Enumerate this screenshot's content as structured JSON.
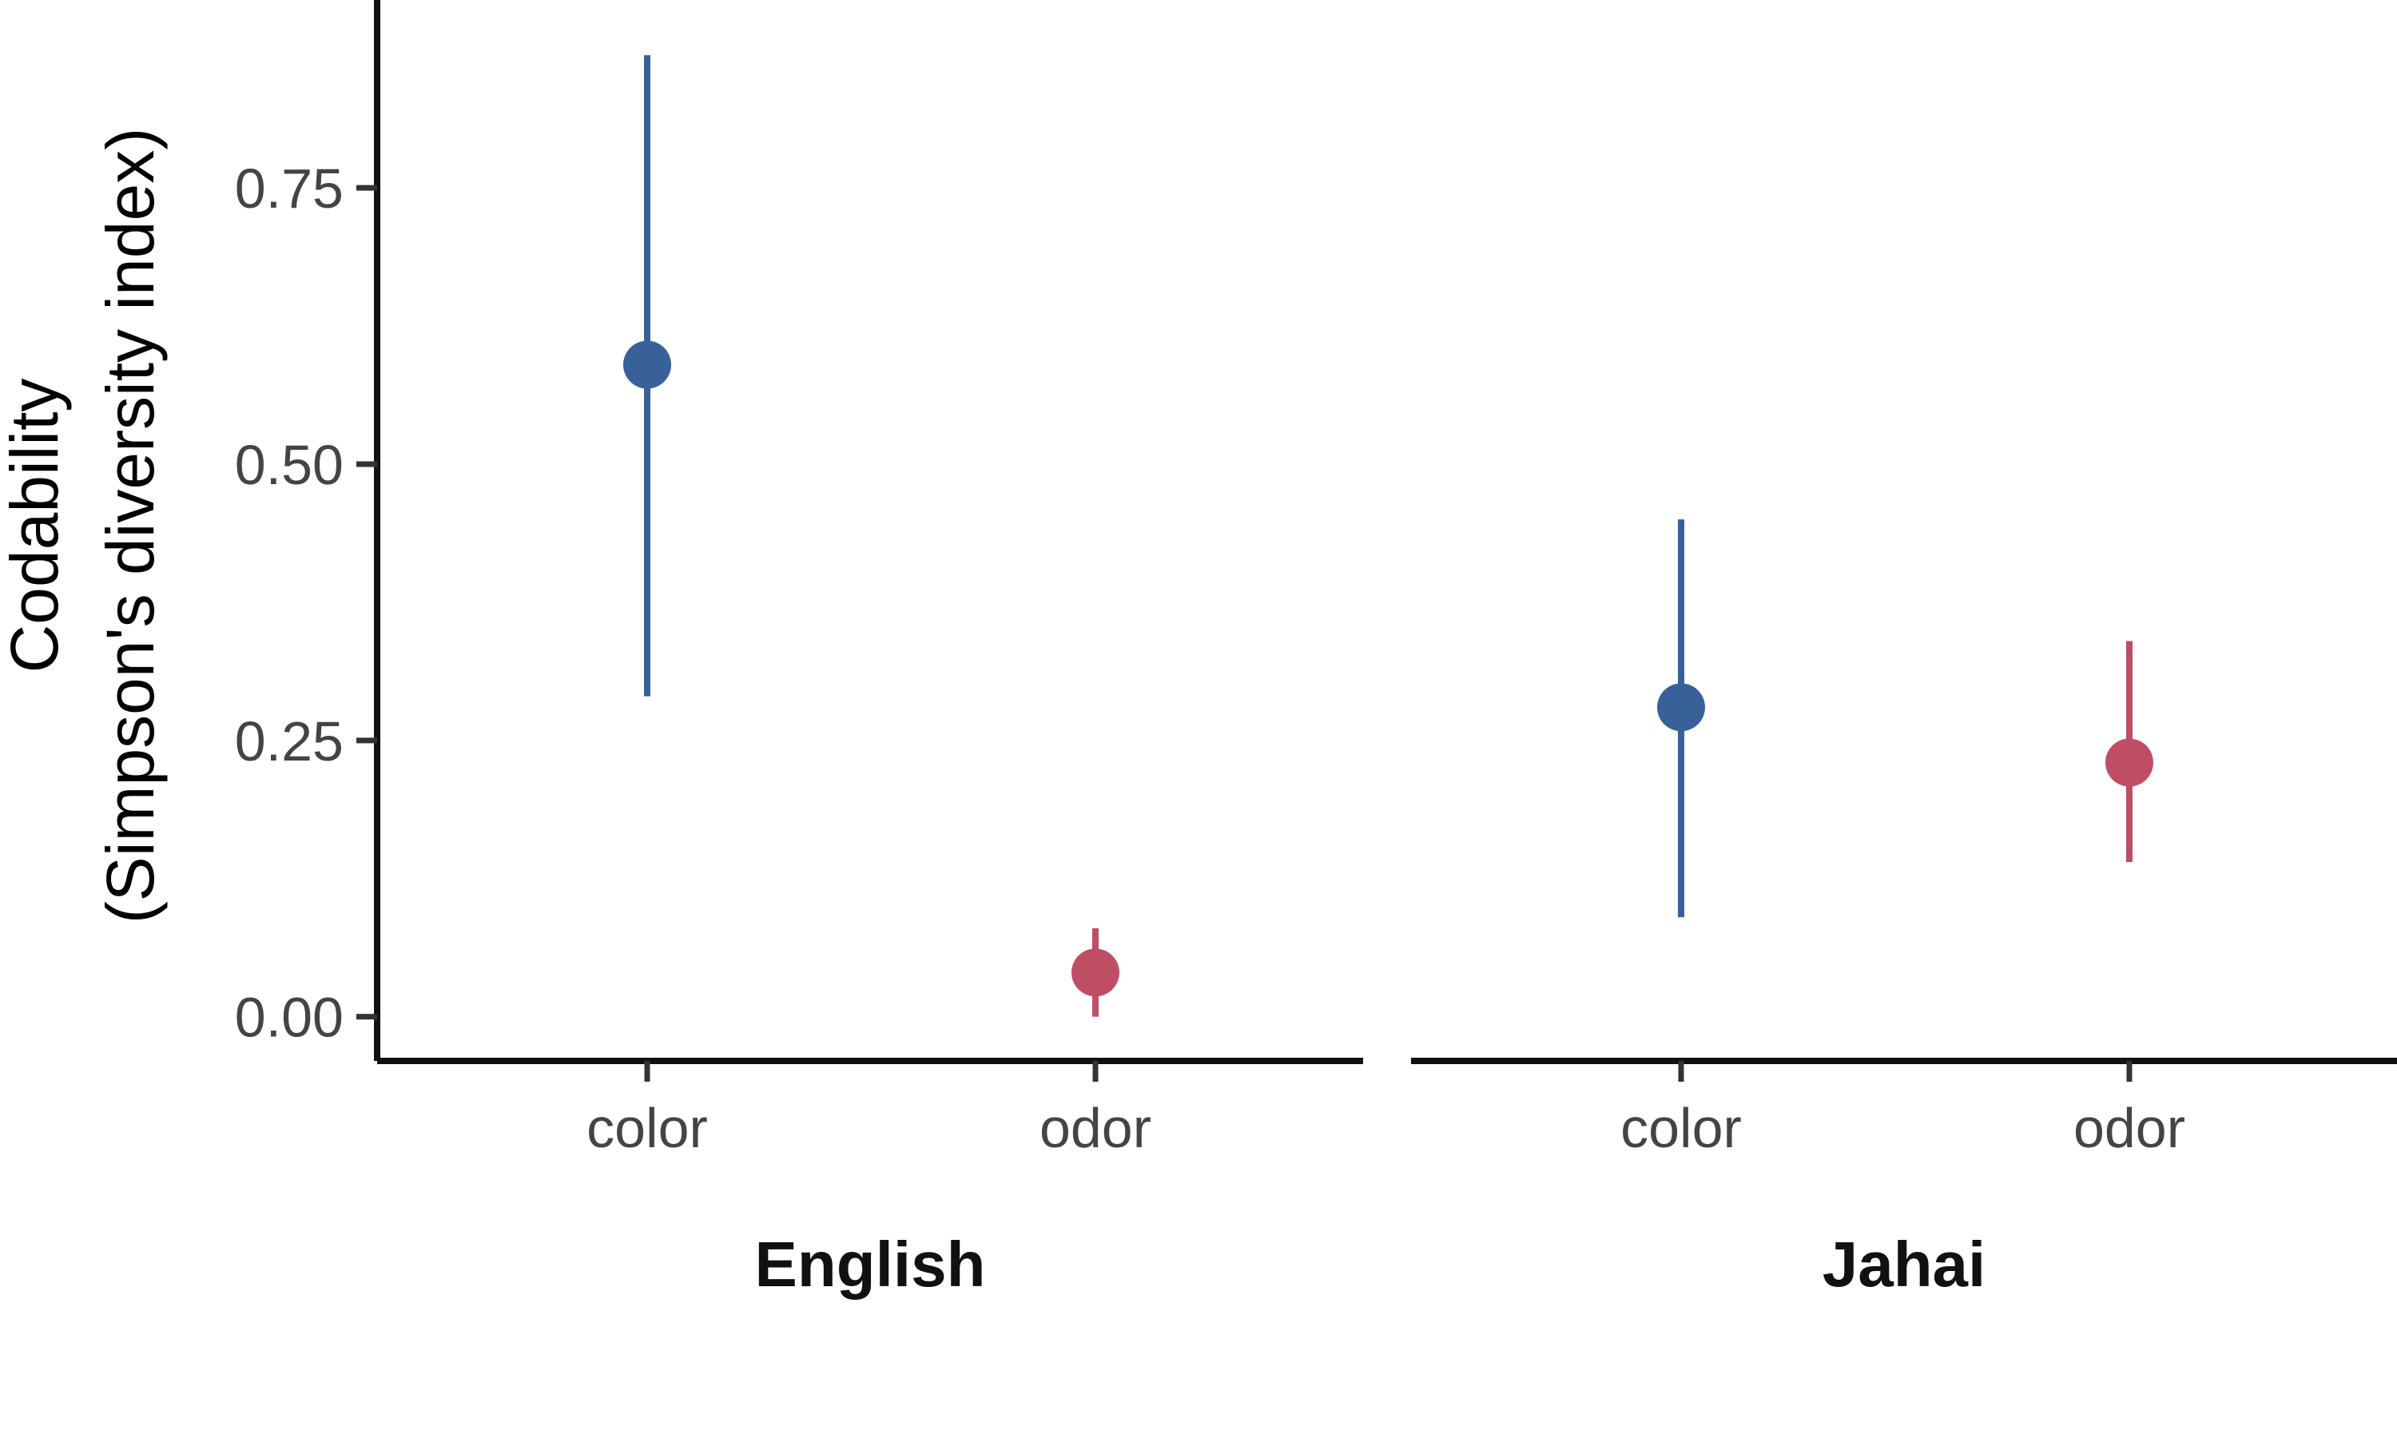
{
  "chart_data": {
    "type": "scatter",
    "ylabel_line1": "Codability",
    "ylabel_line2": "(Simpson's diversity index)",
    "ylim": [
      -0.04,
      0.92
    ],
    "yticks": [
      0.0,
      0.25,
      0.5,
      0.75
    ],
    "ytick_labels": [
      "0.00",
      "0.25",
      "0.50",
      "0.75"
    ],
    "grid": false,
    "legend": "none",
    "categories": [
      "color",
      "odor"
    ],
    "colors": {
      "color": "#386199",
      "odor": "#c04d66"
    },
    "facets": [
      {
        "name": "English",
        "points": [
          {
            "x": "color",
            "y": 0.59,
            "ymin": 0.29,
            "ymax": 0.87
          },
          {
            "x": "odor",
            "y": 0.04,
            "ymin": 0.0,
            "ymax": 0.08
          }
        ]
      },
      {
        "name": "Jahai",
        "points": [
          {
            "x": "color",
            "y": 0.28,
            "ymin": 0.09,
            "ymax": 0.45
          },
          {
            "x": "odor",
            "y": 0.23,
            "ymin": 0.14,
            "ymax": 0.34
          }
        ]
      }
    ]
  }
}
